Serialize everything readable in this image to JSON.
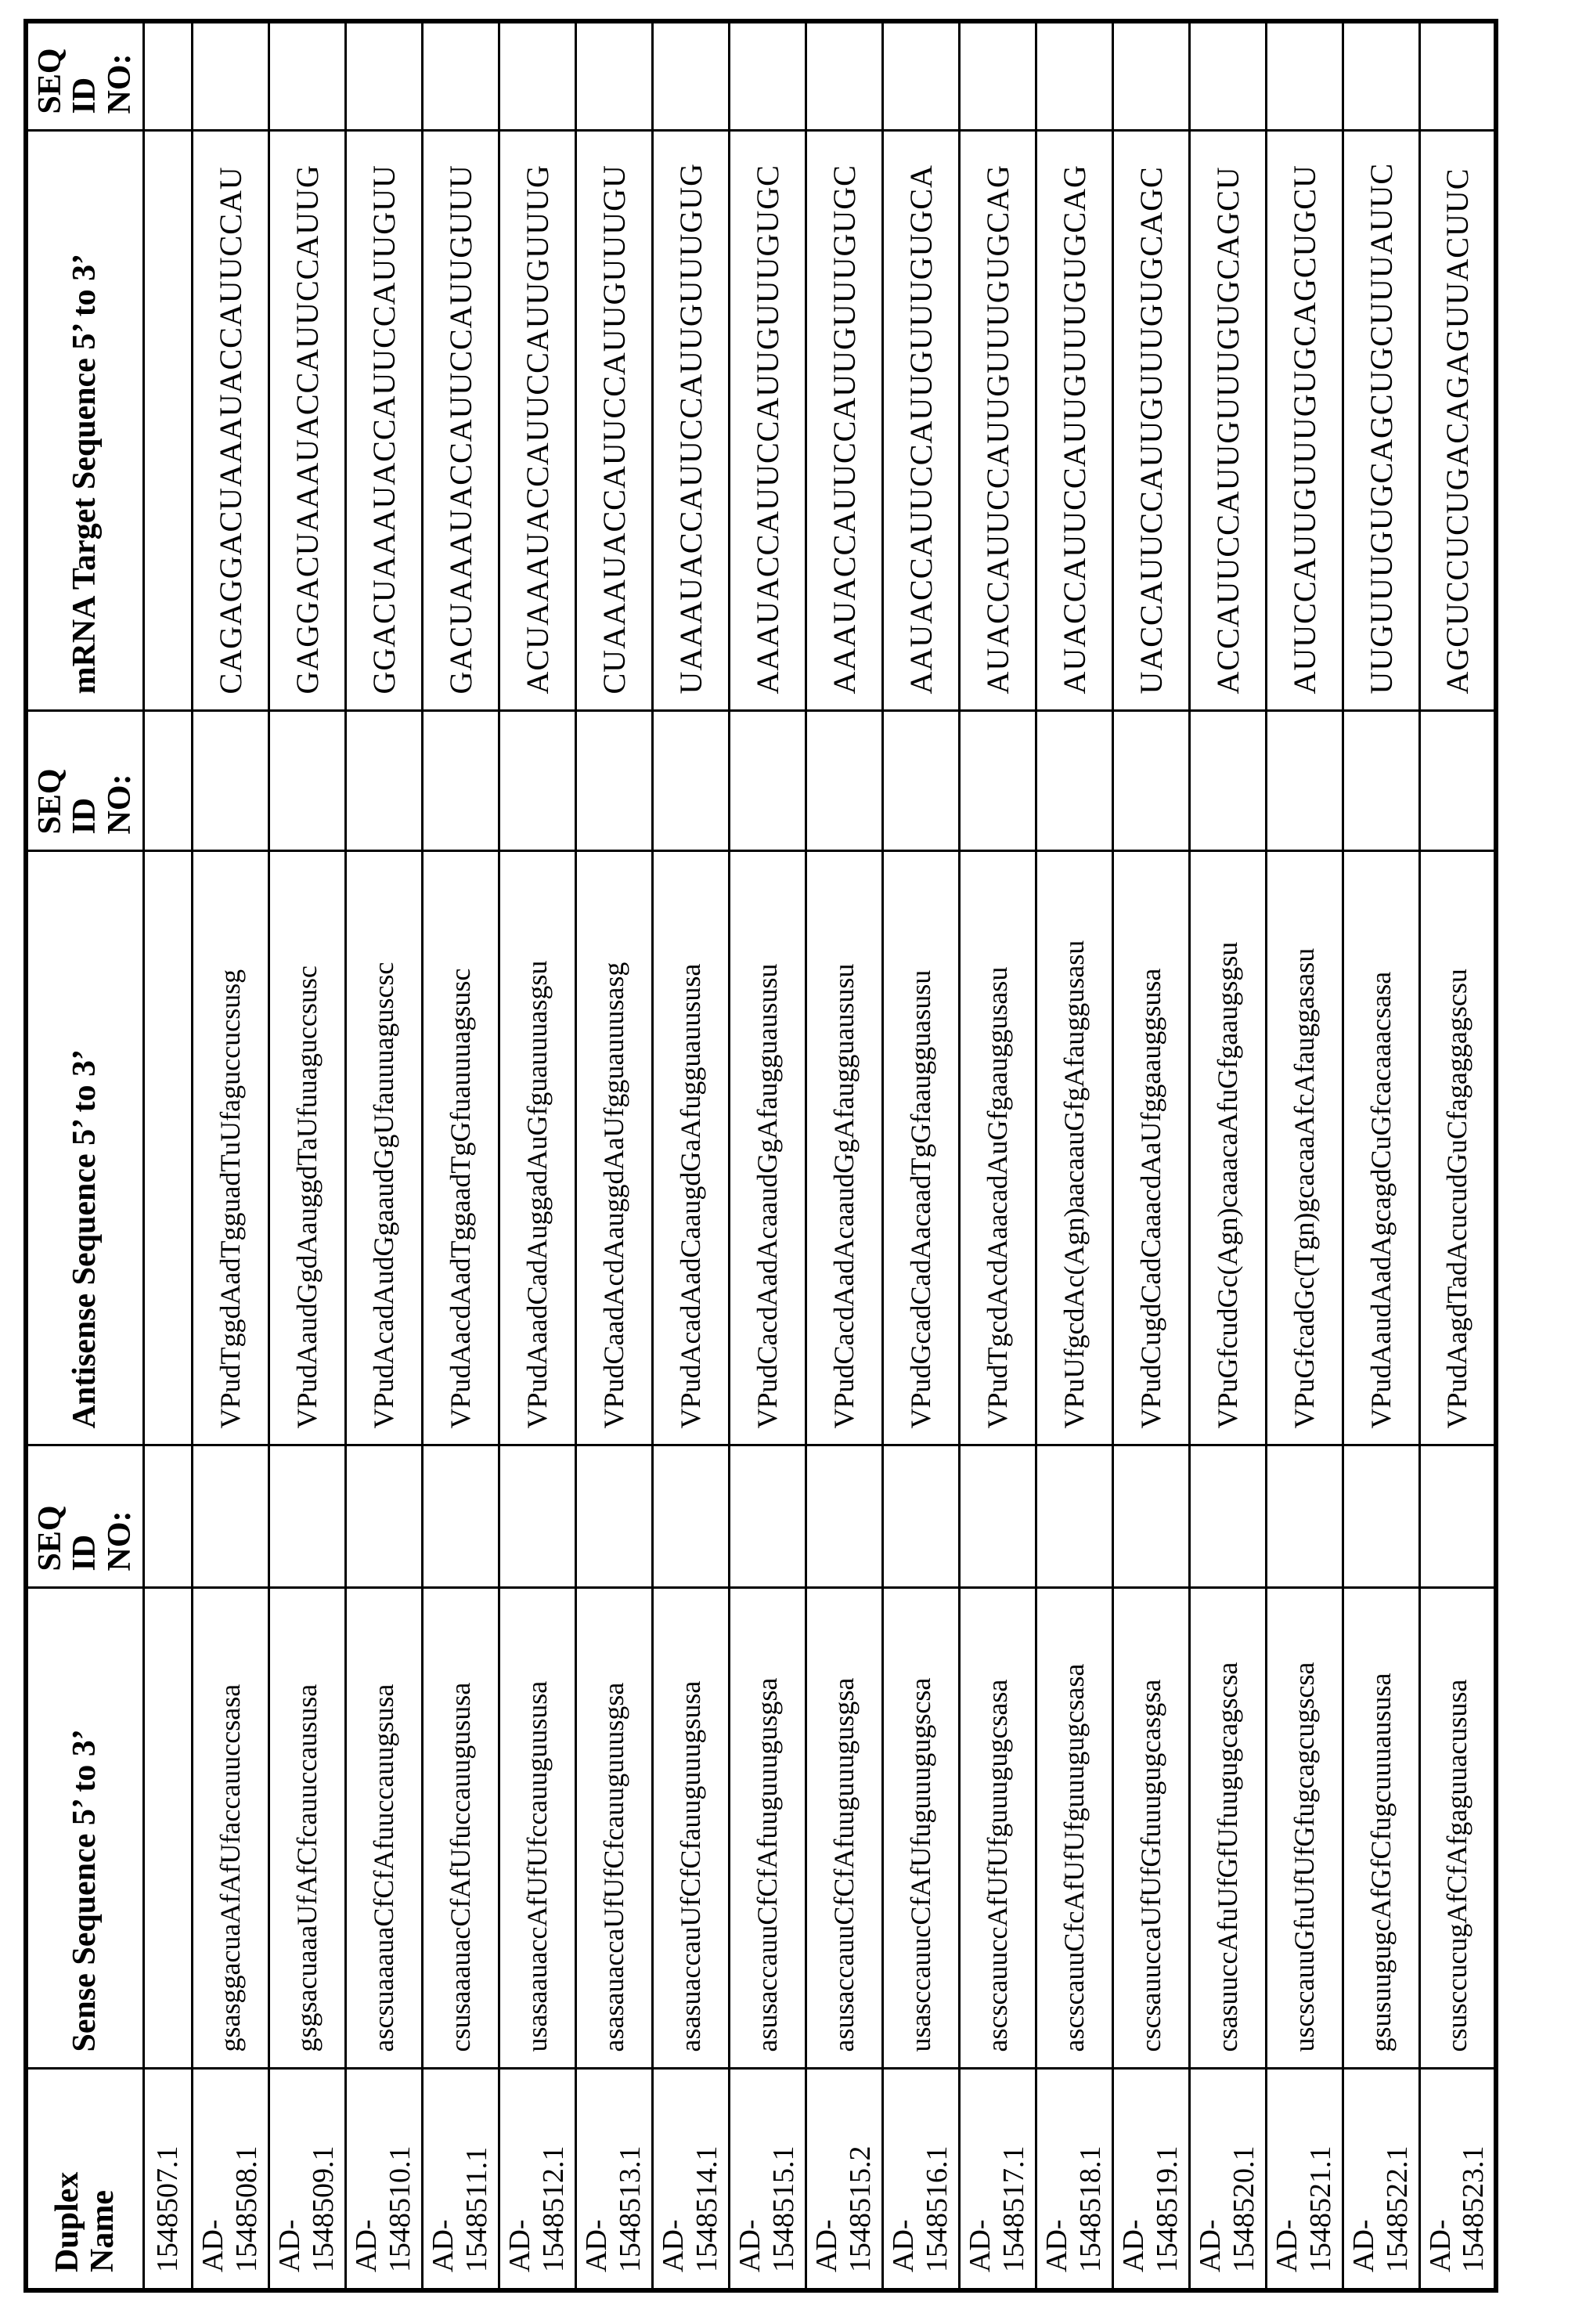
{
  "table": {
    "headers": {
      "duplex_name": "Duplex\nName",
      "sense": "Sense Sequence 5’ to 3’",
      "seq_id": "SEQ\nID\nNO:",
      "antisense": "Antisense Sequence 5’ to 3’",
      "mrna": "mRNA Target Sequence 5’ to 3’"
    },
    "rows": [
      {
        "duplex_name": "1548507.1",
        "sense": "",
        "sense_seq_id": "",
        "antisense": "",
        "antisense_seq_id": "",
        "mrna_target": "",
        "mrna_seq_id": ""
      },
      {
        "duplex_name": "AD-\n1548508.1",
        "sense": "gsasggacuaAfAfUfaccauuccsasa",
        "sense_seq_id": "",
        "antisense": "VPudTggdAadTgguadTuUfaguccucsusg",
        "antisense_seq_id": "",
        "mrna_target": "CAGAGGACUAAAUACCAUUCCAU",
        "mrna_seq_id": ""
      },
      {
        "duplex_name": "AD-\n1548509.1",
        "sense": "gsgsacuaaaUfAfCfcauuccaususa",
        "sense_seq_id": "",
        "antisense": "VPudAaudGgdAauggdTaUfuuaguccsusc",
        "antisense_seq_id": "",
        "mrna_target": "GAGGACUAAAUACCAUUCCAUUG",
        "mrna_seq_id": ""
      },
      {
        "duplex_name": "AD-\n1548510.1",
        "sense": "ascsuaaauaCfCfAfuuccauugsusa",
        "sense_seq_id": "",
        "antisense": "VPudAcadAudGgaaudGgUfauuuaguscsc",
        "antisense_seq_id": "",
        "mrna_target": "GGACUAAAUACCAUUCCAUUGUU",
        "mrna_seq_id": ""
      },
      {
        "duplex_name": "AD-\n1548511.1",
        "sense": "csusaaauacCfAfUfuccauugususa",
        "sense_seq_id": "",
        "antisense": "VPudAacdAadTggaadTgGfuauuuagsusc",
        "antisense_seq_id": "",
        "mrna_target": "GACUAAAUACCAUUCCAUUGUUU",
        "mrna_seq_id": ""
      },
      {
        "duplex_name": "AD-\n1548512.1",
        "sense": "usasaauaccAfUfUfccauuguususa",
        "sense_seq_id": "",
        "antisense": "VPudAaadCadAuggadAuGfguauuuasgsu",
        "antisense_seq_id": "",
        "mrna_target": "ACUAAAUACCAUUCCAUUGUUUG",
        "mrna_seq_id": ""
      },
      {
        "duplex_name": "AD-\n1548513.1",
        "sense": "asasauaccaUfUfCfcauuguuusgsa",
        "sense_seq_id": "",
        "antisense": "VPudCaadAcdAauggdAaUfgguauuusasg",
        "antisense_seq_id": "",
        "mrna_target": "CUAAAUACCAUUCCAUUGUUUGU",
        "mrna_seq_id": ""
      },
      {
        "duplex_name": "AD-\n1548514.1",
        "sense": "asasuaccauUfCfCfauuguuugsusa",
        "sense_seq_id": "",
        "antisense": "VPudAcadAadCaaugdGaAfugguauususa",
        "antisense_seq_id": "",
        "mrna_target": "UAAAUACCAUUCCAUUGUUUGUG",
        "mrna_seq_id": ""
      },
      {
        "duplex_name": "AD-\n1548515.1",
        "sense": "asusaccauuCfCfAfuuguuugusgsa",
        "sense_seq_id": "",
        "antisense": "VPudCacdAadAcaaudGgAfaugguaususu",
        "antisense_seq_id": "",
        "mrna_target": "AAAUACCAUUCCAUUGUUUGUGC",
        "mrna_seq_id": ""
      },
      {
        "duplex_name": "AD-\n1548515.2",
        "sense": "asusaccauuCfCfAfuuguuugusgsa",
        "sense_seq_id": "",
        "antisense": "VPudCacdAadAcaaudGgAfaugguaususu",
        "antisense_seq_id": "",
        "mrna_target": "AAAUACCAUUCCAUUGUUUGUGC",
        "mrna_seq_id": ""
      },
      {
        "duplex_name": "AD-\n1548516.1",
        "sense": "usasccauucCfAfUfuguuugugscsa",
        "sense_seq_id": "",
        "antisense": "VPudGcadCadAacaadTgGfaaugguasusu",
        "antisense_seq_id": "",
        "mrna_target": "AAUACCAUUCCAUUGUUUGUGCA",
        "mrna_seq_id": ""
      },
      {
        "duplex_name": "AD-\n1548517.1",
        "sense": "ascscauuccAfUfUfguuugugcsasa",
        "sense_seq_id": "",
        "antisense": "VPudTgcdAcdAaacadAuGfgaauggusasu",
        "antisense_seq_id": "",
        "mrna_target": "AUACCAUUCCAUUGUUUGUGCAG",
        "mrna_seq_id": ""
      },
      {
        "duplex_name": "AD-\n1548518.1",
        "sense": "ascscauuCfcAfUfUfguuugugcsasa",
        "sense_seq_id": "",
        "antisense": "VPuUfgcdAc(Agn)aacaauGfgAfauggusasu",
        "antisense_seq_id": "",
        "mrna_target": "AUACCAUUCCAUUGUUUGUGCAG",
        "mrna_seq_id": ""
      },
      {
        "duplex_name": "AD-\n1548519.1",
        "sense": "cscsauuccaUfUfGfuuugugcasgsa",
        "sense_seq_id": "",
        "antisense": "VPudCugdCadCaaacdAaUfggaauggsusa",
        "antisense_seq_id": "",
        "mrna_target": "UACCAUUCCAUUGUUUGUGCAGC",
        "mrna_seq_id": ""
      },
      {
        "duplex_name": "AD-\n1548520.1",
        "sense": "csasuuccAfuUfGfUfuugugcagscsa",
        "sense_seq_id": "",
        "antisense": "VPuGfcudGc(Agn)caaacaAfuGfgaaugsgsu",
        "antisense_seq_id": "",
        "mrna_target": "ACCAUUCCAUUGUUUGUGCAGCU",
        "mrna_seq_id": ""
      },
      {
        "duplex_name": "AD-\n1548521.1",
        "sense": "uscscauuGfuUfUfGfugcagcugscsa",
        "sense_seq_id": "",
        "antisense": "VPuGfcadGc(Tgn)gcacaaAfcAfauggasasu",
        "antisense_seq_id": "",
        "mrna_target": "AUUCCAUUGUUUGUGCAGCUGCU",
        "mrna_seq_id": ""
      },
      {
        "duplex_name": "AD-\n1548522.1",
        "sense": "gsusuugugcAfGfCfugcuuuaususa",
        "sense_seq_id": "",
        "antisense": "VPudAaudAadAgcagdCuGfcacaaacsasa",
        "antisense_seq_id": "",
        "mrna_target": "UUGUUUGUGCAGCUGCUUUAUUC",
        "mrna_seq_id": ""
      },
      {
        "duplex_name": "AD-\n1548523.1",
        "sense": "csusccucugAfCfAfgaguuacususa",
        "sense_seq_id": "",
        "antisense": "VPudAagdTadAcucudGuCfagaggagscsu",
        "antisense_seq_id": "",
        "mrna_target": "AGCUCCUCUGACAGAGUUACUUC",
        "mrna_seq_id": ""
      }
    ]
  }
}
